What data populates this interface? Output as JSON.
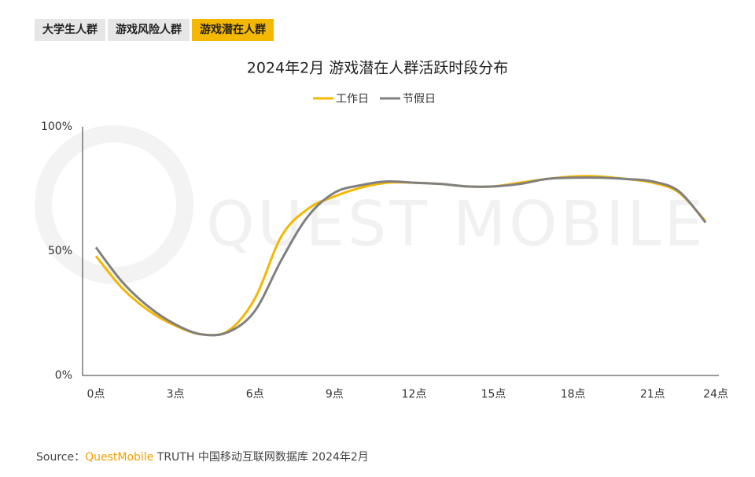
{
  "tabs": {
    "items": [
      "大学生人群",
      "游戏风险人群",
      "游戏潜在人群"
    ],
    "active": 2
  },
  "chart_data": {
    "type": "line",
    "title": "2024年2月 游戏潜在人群活跃时段分布",
    "watermark": "QUEST MOBILE",
    "x": [
      0,
      1,
      2,
      3,
      4,
      5,
      6,
      7,
      8,
      9,
      10,
      11,
      12,
      13,
      14,
      15,
      16,
      17,
      18,
      19,
      20,
      21,
      22,
      23
    ],
    "series": [
      {
        "name": "工作日",
        "color": "#f5b700",
        "values": [
          48,
          35,
          26,
          20,
          16.5,
          18,
          31,
          56,
          67,
          72,
          75.5,
          77.5,
          77.5,
          77,
          76,
          76,
          77.5,
          79,
          80,
          80,
          79,
          77.5,
          73.5,
          62
        ]
      },
      {
        "name": "节假日",
        "color": "#808080",
        "values": [
          51.5,
          37.5,
          27.5,
          20.5,
          16.5,
          17.5,
          26,
          46.5,
          64,
          73.5,
          76.5,
          78,
          77.5,
          77,
          76,
          76,
          77,
          79,
          79.5,
          79.5,
          79,
          78,
          74,
          61.5
        ]
      }
    ],
    "xlim": [
      0,
      23.5
    ],
    "xticks": [
      {
        "value": 0,
        "label": "0点"
      },
      {
        "value": 3,
        "label": "3点"
      },
      {
        "value": 6,
        "label": "6点"
      },
      {
        "value": 9,
        "label": "9点"
      },
      {
        "value": 12,
        "label": "12点"
      },
      {
        "value": 15,
        "label": "15点"
      },
      {
        "value": 18,
        "label": "18点"
      },
      {
        "value": 21,
        "label": "21点"
      },
      {
        "value": 24,
        "label": "24点"
      }
    ],
    "ylim": [
      0,
      100
    ],
    "yticks": [
      {
        "value": 0,
        "label": "0%"
      },
      {
        "value": 50,
        "label": "50%"
      },
      {
        "value": 100,
        "label": "100%"
      }
    ],
    "legend": "top"
  },
  "source": {
    "label": "Source：",
    "brand": "QuestMobile",
    "text": "TRUTH 中国移动互联网数据库 2024年2月"
  }
}
